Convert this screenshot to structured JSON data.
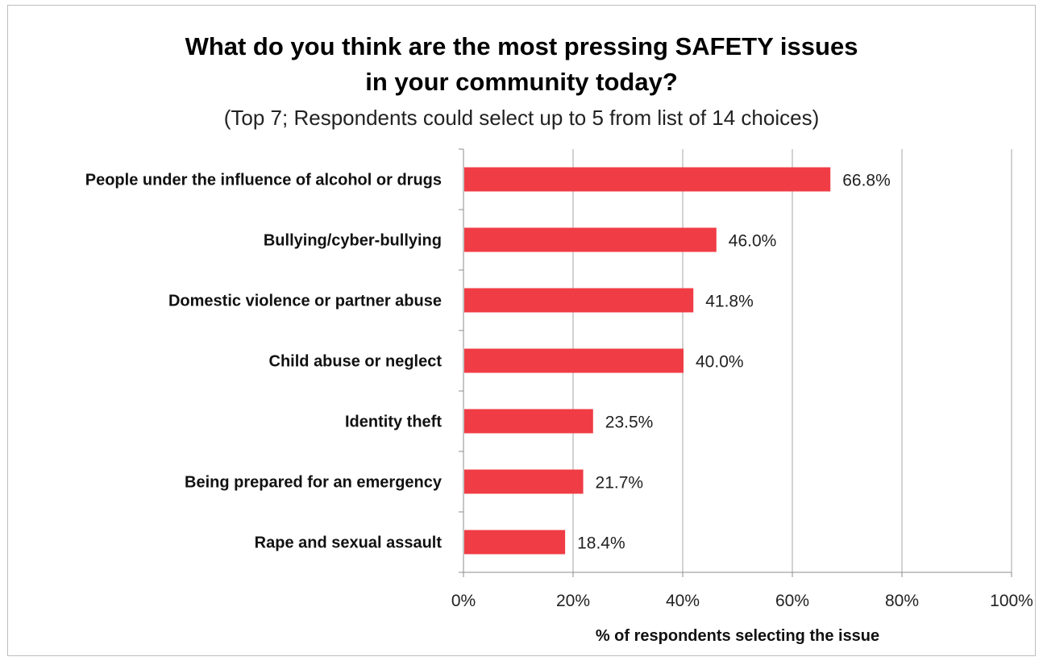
{
  "chart_data": {
    "type": "bar",
    "orientation": "horizontal",
    "title": "What do you think are the most pressing SAFETY issues in your community today?",
    "title_lines": [
      "What do you think are the most pressing SAFETY issues",
      "in your community today?"
    ],
    "subtitle": "(Top 7; Respondents could select up to 5 from list of 14 choices)",
    "categories": [
      "People under the influence of alcohol or drugs",
      "Bullying/cyber-bullying",
      "Domestic violence or partner abuse",
      "Child abuse or neglect",
      "Identity theft",
      "Being prepared for an emergency",
      "Rape and sexual assault"
    ],
    "values": [
      66.8,
      46.0,
      41.8,
      40.0,
      23.5,
      21.7,
      18.4
    ],
    "value_labels": [
      "66.8%",
      "46.0%",
      "41.8%",
      "40.0%",
      "23.5%",
      "21.7%",
      "18.4%"
    ],
    "xlabel": "% of respondents selecting the issue",
    "ylabel": "",
    "xlim": [
      0,
      100
    ],
    "x_ticks": [
      0,
      20,
      40,
      60,
      80,
      100
    ],
    "x_tick_labels": [
      "0%",
      "20%",
      "40%",
      "60%",
      "80%",
      "100%"
    ],
    "grid": true,
    "legend": "none",
    "colors": {
      "bar": "#f03c45",
      "grid": "#a6a6a6",
      "axis": "#8c8c8c"
    }
  }
}
